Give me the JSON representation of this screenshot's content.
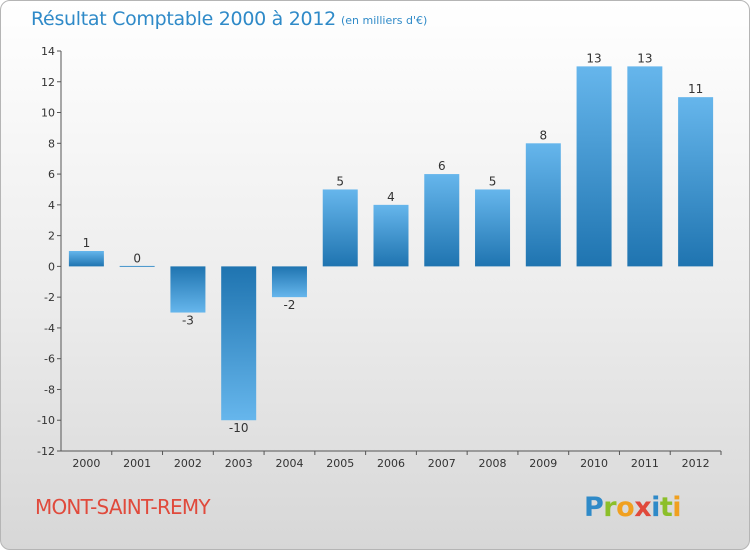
{
  "header": {
    "title": "Résultat Comptable 2000 à 2012",
    "subtitle": "(en milliers d'€)"
  },
  "footer": {
    "commune": "MONT-SAINT-REMY",
    "logo_letters": [
      {
        "ch": "P",
        "color": "#2f8ac8"
      },
      {
        "ch": "r",
        "color": "#8cbf2a"
      },
      {
        "ch": "o",
        "color": "#f0a020"
      },
      {
        "ch": "x",
        "color": "#e04a3c"
      },
      {
        "ch": "i",
        "color": "#2f8ac8"
      },
      {
        "ch": "t",
        "color": "#8cbf2a"
      },
      {
        "ch": "i",
        "color": "#f0a020"
      }
    ]
  },
  "chart_data": {
    "type": "bar",
    "title": "Résultat Comptable 2000 à 2012",
    "subtitle": "(en milliers d'€)",
    "categories": [
      "2000",
      "2001",
      "2002",
      "2003",
      "2004",
      "2005",
      "2006",
      "2007",
      "2008",
      "2009",
      "2010",
      "2011",
      "2012"
    ],
    "values": [
      1,
      0,
      -3,
      -10,
      -2,
      5,
      4,
      6,
      5,
      8,
      13,
      13,
      11
    ],
    "ylim": [
      -12,
      14
    ],
    "yticks": [
      -12,
      -10,
      -8,
      -6,
      -4,
      -2,
      0,
      2,
      4,
      6,
      8,
      10,
      12,
      14
    ],
    "grid": false,
    "legend": "none",
    "colors": {
      "bar_light": "#66b6ec",
      "bar_dark": "#1f74b0",
      "axis": "#555555",
      "label": "#333333"
    }
  }
}
